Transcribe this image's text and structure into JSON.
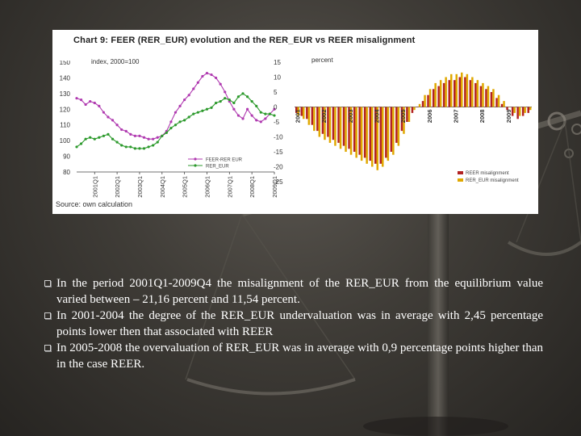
{
  "chart_data": [
    {
      "type": "line",
      "title": "Chart 9: FEER (RER_EUR) evolution and the  RER_EUR vs REER misalignment",
      "ylabel": "index, 2000=100",
      "ylim": [
        80,
        150
      ],
      "yticks": [
        "150",
        "140",
        "130",
        "120",
        "110",
        "100",
        "90",
        "80"
      ],
      "x_tick_labels": [
        "2001Q1",
        "2002Q1",
        "2003Q1",
        "2004Q1",
        "2005Q1",
        "2006Q1",
        "2007Q1",
        "2008Q1",
        "2009Q1"
      ],
      "legend_position": "bottom-right",
      "legend_entries": [
        "FEER-RER EUR",
        "RER_EUR"
      ],
      "series": [
        {
          "name": "FEER-RER EUR",
          "color": "#b03ab0",
          "values": [
            127,
            126,
            123,
            125,
            124,
            122,
            118,
            115,
            113,
            110,
            107,
            106,
            104,
            103,
            103,
            102,
            101,
            101,
            102,
            103,
            106,
            112,
            118,
            122,
            126,
            129,
            133,
            137,
            141,
            143,
            142,
            140,
            136,
            131,
            125,
            120,
            116,
            114,
            120,
            116,
            113,
            112,
            114,
            117,
            120
          ]
        },
        {
          "name": "RER_EUR",
          "color": "#2d9a2d",
          "values": [
            96,
            98,
            101,
            102,
            101,
            102,
            103,
            104,
            101,
            99,
            97,
            96,
            96,
            95,
            95,
            95,
            96,
            97,
            99,
            103,
            105,
            108,
            110,
            112,
            113,
            115,
            117,
            118,
            119,
            120,
            121,
            124,
            125,
            127,
            126,
            124,
            128,
            130,
            128,
            125,
            122,
            118,
            117,
            117,
            116
          ]
        }
      ]
    },
    {
      "type": "bar",
      "ylabel": "percent",
      "ylim": [
        -25,
        15
      ],
      "yticks": [
        "15",
        "10",
        "5",
        "0",
        "-5",
        "-10",
        "-15",
        "-20",
        "-25"
      ],
      "x_tick_labels": [
        "2001",
        "2002",
        "2003",
        "2004",
        "2005",
        "2006",
        "2007",
        "2008",
        "2009"
      ],
      "legend_position": "bottom-right",
      "legend_entries": [
        "REER misalignment",
        "RER_EUR misalignment"
      ],
      "series": [
        {
          "name": "REER misalignment",
          "color": "#b22222",
          "values": [
            -2,
            -3,
            -4,
            -6,
            -8,
            -9,
            -10,
            -11,
            -12,
            -13,
            -14,
            -15,
            -16,
            -17,
            -18,
            -19,
            -19,
            -17,
            -15,
            -12,
            -8,
            -5,
            -2,
            0,
            2,
            4,
            6,
            7,
            8,
            9,
            9,
            10,
            10,
            9,
            8,
            7,
            6,
            5,
            3,
            1,
            -1,
            -3,
            -4,
            -3,
            -2
          ]
        },
        {
          "name": "RER_EUR misalignment",
          "color": "#e0a800",
          "values": [
            -3,
            -4,
            -6,
            -8,
            -10,
            -11,
            -12,
            -13,
            -14,
            -15,
            -16,
            -17,
            -18,
            -19,
            -20,
            -21.16,
            -20,
            -18,
            -16,
            -13,
            -9,
            -5,
            -1,
            1,
            4,
            6,
            8,
            9,
            10,
            11,
            11,
            11.54,
            11,
            10,
            9,
            8,
            7,
            6,
            4,
            2,
            0,
            -2,
            -3,
            -2,
            -1
          ]
        }
      ]
    }
  ],
  "chart_panel": {
    "source": "Source: own calculation"
  },
  "bullets": [
    "In the period 2001Q1-2009Q4 the misalignment of the RER_EUR from the equilibrium value varied between – 21,16 percent and 11,54 percent.",
    "In 2001-2004 the degree of the RER_EUR undervaluation was in average with 2,45 percentage points lower then that associated with REER",
    "In 2005-2008 the overvaluation of RER_EUR was in average with 0,9 percentage points higher than in the case REER."
  ]
}
